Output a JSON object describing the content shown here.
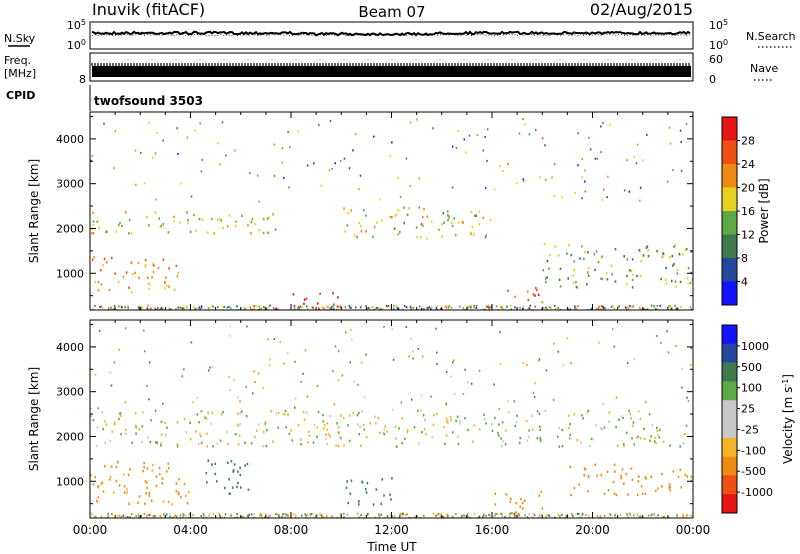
{
  "header": {
    "station": "Inuvik (fitACF)",
    "beam": "Beam 07",
    "date": "02/Aug/2015"
  },
  "nsky_panel": {
    "left_label": "N.Sky",
    "left_ticks": [
      "10^5",
      "10^0"
    ],
    "right_ticks": [
      "10^5",
      "10^0"
    ],
    "right_label": "N.Search"
  },
  "freq_panel": {
    "left_label_top": "Freq.",
    "left_label_unit": "[MHz]",
    "left_tick": "8",
    "right_ticks": [
      "60",
      "0"
    ],
    "right_label": "Nave"
  },
  "cpid": {
    "label": "CPID",
    "program": "twofsound 3503"
  },
  "colors": {
    "power": [
      "#1414ff",
      "#23489c",
      "#3e7a4c",
      "#5aaa46",
      "#e6d21e",
      "#f08c14",
      "#f05014",
      "#e61414"
    ],
    "velocity": [
      "#e61414",
      "#f05014",
      "#f08c14",
      "#f5b428",
      "#c8c8c8",
      "#c8c8c8",
      "#5aaa46",
      "#3e7a4c",
      "#23489c",
      "#1414ff"
    ]
  },
  "chart_data": [
    {
      "type": "heatmap",
      "title": "Power",
      "ylabel": "Slant Range [km]",
      "y_ticks": [
        "1000",
        "2000",
        "3000",
        "4000"
      ],
      "ylim": [
        180,
        4600
      ],
      "xlim": [
        "00:00",
        "24:00"
      ],
      "colorbar_label": "Power [dB]",
      "colorbar_ticks": [
        "4",
        "8",
        "12",
        "16",
        "20",
        "24",
        "28"
      ],
      "colorbar_range": [
        0,
        32
      ],
      "features": [
        {
          "time_start": "00:00",
          "time_end": "03:30",
          "range_start": 600,
          "range_end": 1400,
          "value": 22
        },
        {
          "time_start": "00:00",
          "time_end": "07:30",
          "range_start": 1900,
          "range_end": 2400,
          "value": 18
        },
        {
          "time_start": "08:00",
          "time_end": "10:00",
          "range_start": 180,
          "range_end": 600,
          "value": 30
        },
        {
          "time_start": "10:00",
          "time_end": "16:00",
          "range_start": 1800,
          "range_end": 2500,
          "value": 17
        },
        {
          "time_start": "16:30",
          "time_end": "18:00",
          "range_start": 300,
          "range_end": 700,
          "value": 26
        },
        {
          "time_start": "18:00",
          "time_end": "24:00",
          "range_start": 700,
          "range_end": 1700,
          "value": 14
        }
      ]
    },
    {
      "type": "heatmap",
      "title": "Velocity",
      "ylabel": "Slant Range [km]",
      "y_ticks": [
        "1000",
        "2000",
        "3000",
        "4000"
      ],
      "ylim": [
        180,
        4600
      ],
      "xlim": [
        "00:00",
        "24:00"
      ],
      "x_ticks": [
        "00:00",
        "04:00",
        "08:00",
        "12:00",
        "16:00",
        "20:00",
        "00:00"
      ],
      "xlabel": "Time UT",
      "colorbar_label": "Velocity [m s^-1]",
      "colorbar_ticks": [
        "1000",
        "500",
        "100",
        "25",
        "-25",
        "-100",
        "-500",
        "-1000"
      ],
      "features": [
        {
          "time_start": "00:00",
          "time_end": "04:00",
          "range_start": 500,
          "range_end": 1500,
          "value": -150
        },
        {
          "time_start": "00:00",
          "time_end": "24:00",
          "range_start": 1800,
          "range_end": 2600,
          "value": 0
        },
        {
          "time_start": "04:30",
          "time_end": "06:30",
          "range_start": 700,
          "range_end": 1500,
          "value": 200
        },
        {
          "time_start": "10:00",
          "time_end": "12:00",
          "range_start": 500,
          "range_end": 1100,
          "value": 300
        },
        {
          "time_start": "16:00",
          "time_end": "18:00",
          "range_start": 300,
          "range_end": 800,
          "value": -200
        },
        {
          "time_start": "19:00",
          "time_end": "24:00",
          "range_start": 700,
          "range_end": 1400,
          "value": -300
        }
      ]
    }
  ]
}
